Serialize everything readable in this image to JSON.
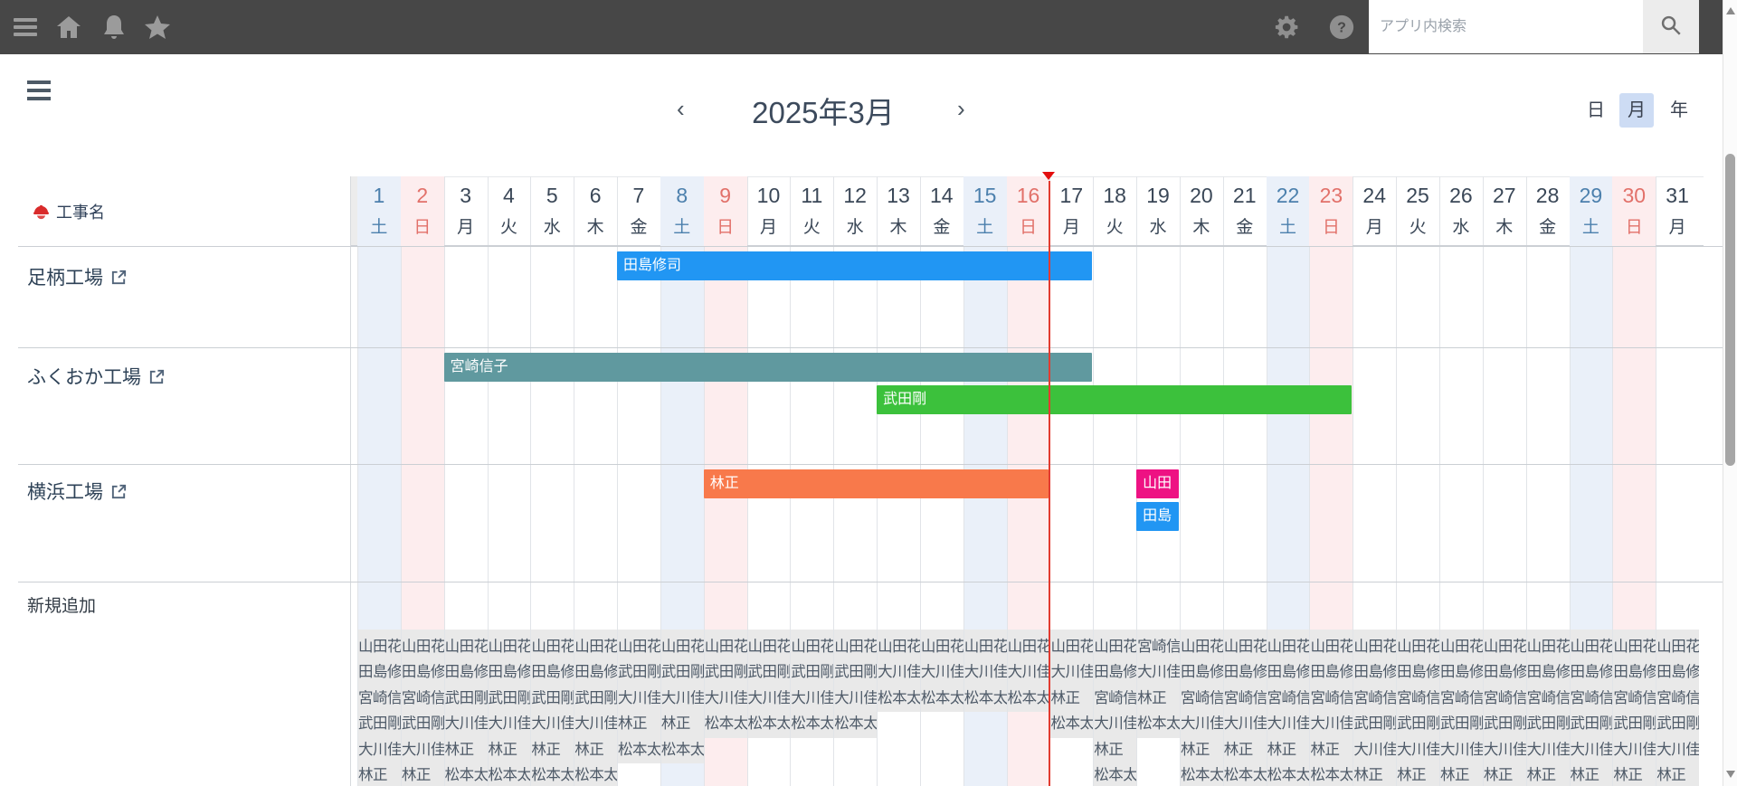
{
  "topbar": {
    "search_placeholder": "アプリ内検索",
    "icons": [
      "hamburger",
      "home",
      "bell",
      "star",
      "gear",
      "help"
    ]
  },
  "toolbar": {
    "title": "2025年3月",
    "prev_label": "‹",
    "next_label": "›",
    "views": [
      {
        "label": "日",
        "active": false
      },
      {
        "label": "月",
        "active": true
      },
      {
        "label": "年",
        "active": false
      }
    ]
  },
  "sidebar": {
    "field_label": "工事名",
    "rows": [
      {
        "label": "足柄工場"
      },
      {
        "label": "ふくおか工場"
      },
      {
        "label": "横浜工場"
      }
    ],
    "add_label": "新規追加"
  },
  "calendar": {
    "year": 2025,
    "month": 3,
    "today_after_day": 16,
    "days": [
      {
        "n": 1,
        "w": "土",
        "t": "sat"
      },
      {
        "n": 2,
        "w": "日",
        "t": "sun"
      },
      {
        "n": 3,
        "w": "月",
        "t": "wd"
      },
      {
        "n": 4,
        "w": "火",
        "t": "wd"
      },
      {
        "n": 5,
        "w": "水",
        "t": "wd"
      },
      {
        "n": 6,
        "w": "木",
        "t": "wd"
      },
      {
        "n": 7,
        "w": "金",
        "t": "wd"
      },
      {
        "n": 8,
        "w": "土",
        "t": "sat"
      },
      {
        "n": 9,
        "w": "日",
        "t": "sun"
      },
      {
        "n": 10,
        "w": "月",
        "t": "wd"
      },
      {
        "n": 11,
        "w": "火",
        "t": "wd"
      },
      {
        "n": 12,
        "w": "水",
        "t": "wd"
      },
      {
        "n": 13,
        "w": "木",
        "t": "wd"
      },
      {
        "n": 14,
        "w": "金",
        "t": "wd"
      },
      {
        "n": 15,
        "w": "土",
        "t": "sat"
      },
      {
        "n": 16,
        "w": "日",
        "t": "sun"
      },
      {
        "n": 17,
        "w": "月",
        "t": "wd"
      },
      {
        "n": 18,
        "w": "火",
        "t": "wd"
      },
      {
        "n": 19,
        "w": "水",
        "t": "wd"
      },
      {
        "n": 20,
        "w": "木",
        "t": "wd"
      },
      {
        "n": 21,
        "w": "金",
        "t": "wd"
      },
      {
        "n": 22,
        "w": "土",
        "t": "sat"
      },
      {
        "n": 23,
        "w": "日",
        "t": "sun"
      },
      {
        "n": 24,
        "w": "月",
        "t": "wd"
      },
      {
        "n": 25,
        "w": "火",
        "t": "wd"
      },
      {
        "n": 26,
        "w": "水",
        "t": "wd"
      },
      {
        "n": 27,
        "w": "木",
        "t": "wd"
      },
      {
        "n": 28,
        "w": "金",
        "t": "wd"
      },
      {
        "n": 29,
        "w": "土",
        "t": "sat"
      },
      {
        "n": 30,
        "w": "日",
        "t": "sun"
      },
      {
        "n": 31,
        "w": "月",
        "t": "wd"
      }
    ],
    "bars": [
      {
        "label": "田島修司",
        "start": 7,
        "end": 17,
        "color": "#2196f3",
        "row": 0,
        "line": 0
      },
      {
        "label": "宮崎信子",
        "start": 3,
        "end": 17,
        "color": "#60999f",
        "row": 1,
        "line": 0
      },
      {
        "label": "武田剛",
        "start": 13,
        "end": 23,
        "color": "#3cc13c",
        "row": 1,
        "line": 1
      },
      {
        "label": "林正",
        "start": 9,
        "end": 16,
        "color": "#f8794b",
        "row": 2,
        "line": 0
      },
      {
        "label": "山田",
        "start": 19,
        "end": 19,
        "color": "#ee1283",
        "row": 2,
        "line": 0
      },
      {
        "label": "田島",
        "start": 19,
        "end": 19,
        "color": "#2196f3",
        "row": 2,
        "line": 1
      }
    ],
    "availability": [
      {
        "day": 1,
        "names": [
          "山田花",
          "田島修",
          "宮崎信",
          "武田剛",
          "大川佳",
          "林正"
        ]
      },
      {
        "day": 2,
        "names": [
          "山田花",
          "田島修",
          "宮崎信",
          "武田剛",
          "大川佳",
          "林正"
        ]
      },
      {
        "day": 3,
        "names": [
          "山田花",
          "田島修",
          "武田剛",
          "大川佳",
          "林正",
          "松本太"
        ]
      },
      {
        "day": 4,
        "names": [
          "山田花",
          "田島修",
          "武田剛",
          "大川佳",
          "林正",
          "松本太"
        ]
      },
      {
        "day": 5,
        "names": [
          "山田花",
          "田島修",
          "武田剛",
          "大川佳",
          "林正",
          "松本太"
        ]
      },
      {
        "day": 6,
        "names": [
          "山田花",
          "田島修",
          "武田剛",
          "大川佳",
          "林正",
          "松本太"
        ]
      },
      {
        "day": 7,
        "names": [
          "山田花",
          "武田剛",
          "大川佳",
          "林正",
          "松本太"
        ]
      },
      {
        "day": 8,
        "names": [
          "山田花",
          "武田剛",
          "大川佳",
          "林正",
          "松本太"
        ]
      },
      {
        "day": 9,
        "names": [
          "山田花",
          "武田剛",
          "大川佳",
          "松本太"
        ]
      },
      {
        "day": 10,
        "names": [
          "山田花",
          "武田剛",
          "大川佳",
          "松本太"
        ]
      },
      {
        "day": 11,
        "names": [
          "山田花",
          "武田剛",
          "大川佳",
          "松本太"
        ]
      },
      {
        "day": 12,
        "names": [
          "山田花",
          "武田剛",
          "大川佳",
          "松本太"
        ]
      },
      {
        "day": 13,
        "names": [
          "山田花",
          "大川佳",
          "松本太"
        ]
      },
      {
        "day": 14,
        "names": [
          "山田花",
          "大川佳",
          "松本太"
        ]
      },
      {
        "day": 15,
        "names": [
          "山田花",
          "大川佳",
          "松本太"
        ]
      },
      {
        "day": 16,
        "names": [
          "山田花",
          "大川佳",
          "松本太"
        ]
      },
      {
        "day": 17,
        "names": [
          "山田花",
          "大川佳",
          "林正",
          "松本太"
        ]
      },
      {
        "day": 18,
        "names": [
          "山田花",
          "田島修",
          "宮崎信",
          "大川佳",
          "林正",
          "松本太"
        ]
      },
      {
        "day": 19,
        "names": [
          "宮崎信",
          "大川佳",
          "林正",
          "松本太"
        ]
      },
      {
        "day": 20,
        "names": [
          "山田花",
          "田島修",
          "宮崎信",
          "大川佳",
          "林正",
          "松本太"
        ]
      },
      {
        "day": 21,
        "names": [
          "山田花",
          "田島修",
          "宮崎信",
          "大川佳",
          "林正",
          "松本太"
        ]
      },
      {
        "day": 22,
        "names": [
          "山田花",
          "田島修",
          "宮崎信",
          "大川佳",
          "林正",
          "松本太"
        ]
      },
      {
        "day": 23,
        "names": [
          "山田花",
          "田島修",
          "宮崎信",
          "大川佳",
          "林正",
          "松本太"
        ]
      },
      {
        "day": 24,
        "names": [
          "山田花",
          "田島修",
          "宮崎信",
          "武田剛",
          "大川佳",
          "林正"
        ]
      },
      {
        "day": 25,
        "names": [
          "山田花",
          "田島修",
          "宮崎信",
          "武田剛",
          "大川佳",
          "林正"
        ]
      },
      {
        "day": 26,
        "names": [
          "山田花",
          "田島修",
          "宮崎信",
          "武田剛",
          "大川佳",
          "林正"
        ]
      },
      {
        "day": 27,
        "names": [
          "山田花",
          "田島修",
          "宮崎信",
          "武田剛",
          "大川佳",
          "林正"
        ]
      },
      {
        "day": 28,
        "names": [
          "山田花",
          "田島修",
          "宮崎信",
          "武田剛",
          "大川佳",
          "林正"
        ]
      },
      {
        "day": 29,
        "names": [
          "山田花",
          "田島修",
          "宮崎信",
          "武田剛",
          "大川佳",
          "林正"
        ]
      },
      {
        "day": 30,
        "names": [
          "山田花",
          "田島修",
          "宮崎信",
          "武田剛",
          "大川佳",
          "林正"
        ]
      },
      {
        "day": 31,
        "names": [
          "山田花",
          "田島修",
          "宮崎信",
          "武田剛",
          "大川佳",
          "林正"
        ]
      }
    ],
    "colors": {
      "sat_bg": "#eaf0f9",
      "sun_bg": "#fdedee",
      "sat_text": "#4c80ad",
      "sun_text": "#e2716a",
      "day_text": "#3a4757",
      "today_line": "#e23b30"
    }
  }
}
